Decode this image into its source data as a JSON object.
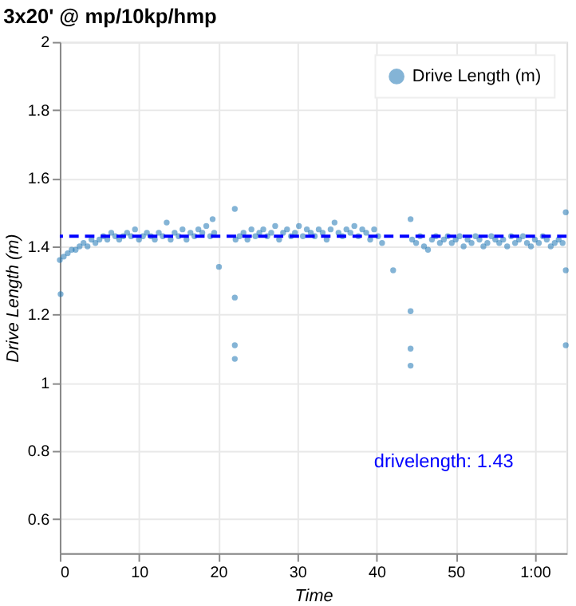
{
  "chart_data": {
    "type": "scatter",
    "title": "3x20' @ mp/10kp/hmp",
    "xlabel": "Time",
    "ylabel": "Drive Length (m)",
    "xlim": [
      0,
      64
    ],
    "ylim": [
      0.5,
      2
    ],
    "xticks": [
      0,
      10,
      20,
      30,
      40,
      50,
      {
        "value": 60,
        "label": "1:00"
      }
    ],
    "yticks": [
      0.6,
      0.8,
      1,
      1.2,
      1.4,
      1.6,
      1.8,
      2
    ],
    "grid": true,
    "legend": "top right",
    "marker": "circle",
    "ref_lines": [
      {
        "axis": "y",
        "value": 1.43,
        "color": "#0000ff",
        "line_style": "dashed"
      }
    ],
    "annotations": [
      "drivelength:   1.43"
    ],
    "series": [
      {
        "name": "Drive Length (m)",
        "color": "#1f77b4",
        "x": [
          0,
          0.1,
          0.5,
          1,
          1.5,
          2,
          2.5,
          3,
          3.5,
          4,
          4.5,
          5,
          5.5,
          6,
          6.5,
          7,
          7.5,
          8,
          8.5,
          9,
          9.5,
          10,
          10.5,
          11,
          11.5,
          12,
          12.5,
          13,
          13.5,
          14,
          14.5,
          15,
          15.5,
          16,
          16.5,
          17,
          17.5,
          18,
          18.5,
          19,
          19.3,
          19.5,
          20.1,
          22.1,
          22.1,
          22.1,
          22.1,
          22.2,
          22.7,
          23.2,
          23.7,
          24.2,
          24.7,
          25.2,
          25.7,
          26.2,
          26.7,
          27.2,
          27.7,
          28.2,
          28.7,
          29.2,
          29.7,
          30.2,
          30.7,
          31.2,
          31.7,
          32.2,
          32.7,
          33.2,
          33.7,
          34.2,
          34.7,
          35.2,
          35.7,
          36.2,
          36.7,
          37.2,
          37.7,
          38.2,
          38.7,
          39.2,
          39.7,
          40.2,
          40.7,
          42.1,
          44.3,
          44.3,
          44.3,
          44.3,
          44.5,
          45,
          45.5,
          46,
          46.5,
          47,
          47.5,
          48,
          48.5,
          49,
          49.5,
          50,
          50.5,
          51,
          51.5,
          52,
          52.5,
          53,
          53.5,
          54,
          54.5,
          55,
          55.5,
          56,
          56.5,
          57,
          57.5,
          58,
          58.5,
          59,
          59.5,
          60,
          60.5,
          61,
          61.5,
          62,
          62.5,
          63,
          63.5,
          63.9,
          63.9,
          63.9
        ],
        "values": [
          1.36,
          1.26,
          1.37,
          1.38,
          1.39,
          1.39,
          1.4,
          1.41,
          1.4,
          1.42,
          1.41,
          1.42,
          1.43,
          1.42,
          1.44,
          1.43,
          1.42,
          1.43,
          1.44,
          1.43,
          1.45,
          1.42,
          1.43,
          1.44,
          1.43,
          1.42,
          1.44,
          1.43,
          1.47,
          1.42,
          1.44,
          1.43,
          1.45,
          1.42,
          1.44,
          1.43,
          1.45,
          1.44,
          1.46,
          1.43,
          1.48,
          1.44,
          1.34,
          1.51,
          1.25,
          1.11,
          1.07,
          1.42,
          1.43,
          1.44,
          1.42,
          1.45,
          1.43,
          1.44,
          1.45,
          1.43,
          1.44,
          1.46,
          1.42,
          1.44,
          1.45,
          1.43,
          1.44,
          1.46,
          1.43,
          1.45,
          1.44,
          1.43,
          1.45,
          1.44,
          1.42,
          1.45,
          1.47,
          1.44,
          1.43,
          1.45,
          1.44,
          1.46,
          1.43,
          1.45,
          1.44,
          1.42,
          1.45,
          1.43,
          1.41,
          1.33,
          1.48,
          1.21,
          1.1,
          1.05,
          1.42,
          1.41,
          1.43,
          1.4,
          1.39,
          1.42,
          1.43,
          1.41,
          1.42,
          1.43,
          1.41,
          1.42,
          1.43,
          1.4,
          1.42,
          1.41,
          1.43,
          1.42,
          1.4,
          1.41,
          1.43,
          1.42,
          1.41,
          1.42,
          1.4,
          1.43,
          1.41,
          1.42,
          1.43,
          1.41,
          1.4,
          1.42,
          1.41,
          1.43,
          1.42,
          1.4,
          1.41,
          1.42,
          1.41,
          1.5,
          1.33,
          1.11
        ]
      }
    ]
  }
}
